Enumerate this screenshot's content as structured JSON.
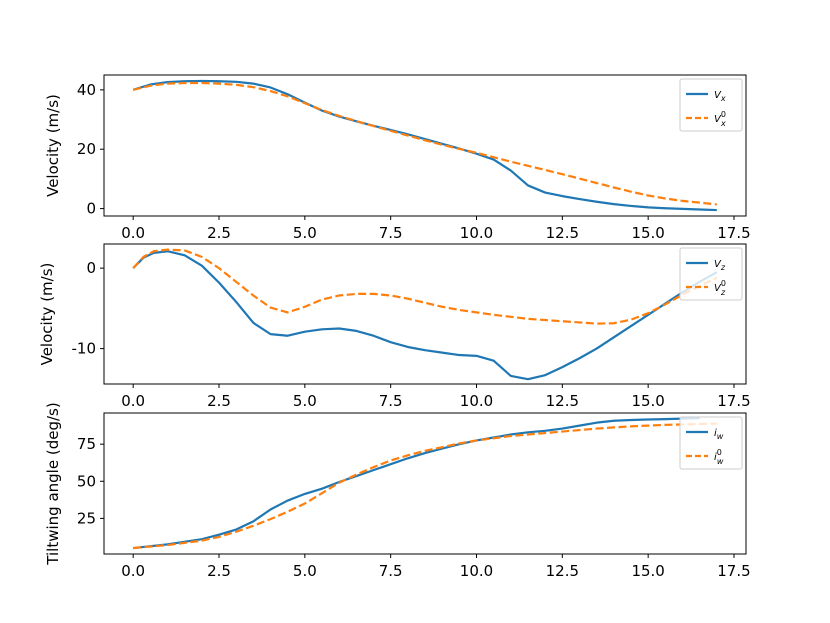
{
  "colors": {
    "series1": "#1f77b4",
    "series2": "#ff7f0e"
  },
  "chart_data": [
    {
      "type": "line",
      "ylabel": "Velocity (m/s)",
      "xlim": [
        -0.85,
        17.85
      ],
      "ylim": [
        -2.5,
        45
      ],
      "xticks": [
        0,
        2.5,
        5,
        7.5,
        10,
        12.5,
        15,
        17.5
      ],
      "xtick_labels": [
        "0.0",
        "2.5",
        "5.0",
        "7.5",
        "10.0",
        "12.5",
        "15.0",
        "17.5"
      ],
      "yticks": [
        0,
        20,
        40
      ],
      "ytick_labels": [
        "0",
        "20",
        "40"
      ],
      "legend": "top-right",
      "series": [
        {
          "name": "V",
          "sub": "x",
          "sup": "",
          "style": "solid",
          "x": [
            0,
            0.5,
            1,
            1.5,
            2,
            2.5,
            3,
            3.5,
            4,
            4.5,
            5,
            5.5,
            6,
            6.5,
            7,
            7.5,
            8,
            8.5,
            9,
            9.5,
            10,
            10.5,
            11,
            11.5,
            12,
            12.5,
            13,
            13.5,
            14,
            14.5,
            15,
            15.5,
            16,
            16.5,
            17
          ],
          "y": [
            40,
            41.8,
            42.6,
            42.9,
            43,
            42.9,
            42.7,
            42.1,
            40.8,
            38.5,
            35.7,
            33,
            31,
            29.4,
            27.9,
            26.5,
            25,
            23.4,
            21.8,
            20.2,
            18.5,
            16.5,
            12.8,
            7.8,
            5.4,
            4.2,
            3.2,
            2.3,
            1.5,
            0.9,
            0.4,
            0.1,
            -0.1,
            -0.3,
            -0.5
          ]
        },
        {
          "name": "V",
          "sub": "x",
          "sup": "0",
          "style": "dashed",
          "x": [
            0,
            0.5,
            1,
            1.5,
            2,
            2.5,
            3,
            3.5,
            4,
            4.5,
            5,
            5.5,
            6,
            6.5,
            7,
            7.5,
            8,
            8.5,
            9,
            9.5,
            10,
            10.5,
            11,
            11.5,
            12,
            12.5,
            13,
            13.5,
            14,
            14.5,
            15,
            15.5,
            16,
            16.5,
            17
          ],
          "y": [
            40,
            41.4,
            42.1,
            42.3,
            42.3,
            42.1,
            41.7,
            40.9,
            39.6,
            37.8,
            35.5,
            33.2,
            31.2,
            29.5,
            27.8,
            26.2,
            24.6,
            23,
            21.5,
            20.1,
            18.8,
            17.3,
            15.8,
            14.4,
            13,
            11.6,
            10.1,
            8.6,
            7.1,
            5.7,
            4.4,
            3.4,
            2.6,
            2,
            1.4
          ]
        }
      ]
    },
    {
      "type": "line",
      "ylabel": "Velocity (m/s)",
      "xlim": [
        -0.85,
        17.85
      ],
      "ylim": [
        -14.4,
        3.0
      ],
      "xticks": [
        0,
        2.5,
        5,
        7.5,
        10,
        12.5,
        15,
        17.5
      ],
      "xtick_labels": [
        "0.0",
        "2.5",
        "5.0",
        "7.5",
        "10.0",
        "12.5",
        "15.0",
        "17.5"
      ],
      "yticks": [
        0,
        -10
      ],
      "ytick_labels": [
        "0",
        "-10"
      ],
      "legend": "top-right",
      "series": [
        {
          "name": "V",
          "sub": "z",
          "sup": "",
          "style": "solid",
          "x": [
            0,
            0.3,
            0.6,
            1,
            1.5,
            2,
            2.5,
            3,
            3.5,
            4,
            4.5,
            5,
            5.5,
            6,
            6.5,
            7,
            7.5,
            8,
            8.5,
            9,
            9.5,
            10,
            10.5,
            11,
            11.5,
            12,
            12.5,
            13,
            13.5,
            14,
            14.5,
            15,
            15.5,
            16,
            16.5,
            17
          ],
          "y": [
            0,
            1.3,
            1.9,
            2.1,
            1.6,
            0.3,
            -1.8,
            -4.2,
            -6.8,
            -8.2,
            -8.4,
            -7.9,
            -7.6,
            -7.5,
            -7.8,
            -8.4,
            -9.2,
            -9.8,
            -10.2,
            -10.5,
            -10.8,
            -10.9,
            -11.5,
            -13.4,
            -13.8,
            -13.3,
            -12.3,
            -11.2,
            -10,
            -8.6,
            -7.2,
            -5.8,
            -4.4,
            -3,
            -1.7,
            -0.5
          ]
        },
        {
          "name": "V",
          "sub": "z",
          "sup": "0",
          "style": "dashed",
          "x": [
            0,
            0.3,
            0.6,
            1,
            1.5,
            2,
            2.5,
            3,
            3.5,
            4,
            4.5,
            5,
            5.5,
            6,
            6.5,
            7,
            7.5,
            8,
            8.5,
            9,
            9.5,
            10,
            10.5,
            11,
            11.5,
            12,
            12.5,
            13,
            13.5,
            14,
            14.5,
            15,
            15.5,
            16,
            16.5,
            17
          ],
          "y": [
            0,
            1.4,
            2.1,
            2.3,
            2.2,
            1.4,
            0,
            -1.7,
            -3.4,
            -4.9,
            -5.5,
            -4.8,
            -3.9,
            -3.4,
            -3.2,
            -3.2,
            -3.4,
            -3.8,
            -4.3,
            -4.8,
            -5.2,
            -5.5,
            -5.8,
            -6.05,
            -6.3,
            -6.45,
            -6.6,
            -6.75,
            -6.9,
            -6.85,
            -6.4,
            -5.6,
            -4.5,
            -3.3,
            -2.2,
            -1.2
          ]
        }
      ]
    },
    {
      "type": "line",
      "ylabel": "Tiltwing angle (deg/s)",
      "xlim": [
        -0.85,
        17.85
      ],
      "ylim": [
        1,
        96
      ],
      "xticks": [
        0,
        2.5,
        5,
        7.5,
        10,
        12.5,
        15,
        17.5
      ],
      "xtick_labels": [
        "0.0",
        "2.5",
        "5.0",
        "7.5",
        "10.0",
        "12.5",
        "15.0",
        "17.5"
      ],
      "yticks": [
        25,
        50,
        75
      ],
      "ytick_labels": [
        "25",
        "50",
        "75"
      ],
      "legend": "top-right",
      "series": [
        {
          "name": "i",
          "sub": "w",
          "sup": "",
          "style": "solid",
          "x": [
            0,
            1,
            2,
            2.5,
            3,
            3.5,
            4,
            4.5,
            5,
            5.5,
            6,
            6.5,
            7,
            7.5,
            8,
            8.5,
            9,
            9.5,
            10,
            10.5,
            11,
            11.5,
            12,
            12.5,
            13,
            13.5,
            14,
            14.5,
            15,
            15.5,
            16,
            16.5
          ],
          "y": [
            5,
            7.5,
            11,
            14,
            17.5,
            23,
            31,
            37,
            41.5,
            45,
            49.5,
            53.5,
            57.5,
            61.5,
            65.5,
            69,
            72,
            75,
            77.5,
            79.5,
            81.5,
            83,
            84,
            85.5,
            87.5,
            89.5,
            90.8,
            91.3,
            91.6,
            91.9,
            92.2,
            92.5
          ]
        },
        {
          "name": "i",
          "sub": "w",
          "sup": "0",
          "style": "dashed",
          "x": [
            0,
            1,
            2,
            2.5,
            3,
            3.5,
            4,
            4.5,
            5,
            5.5,
            6,
            6.5,
            7,
            7.5,
            8,
            8.5,
            9,
            9.5,
            10,
            10.5,
            11,
            11.5,
            12,
            12.5,
            13,
            13.5,
            14,
            14.5,
            15,
            15.5,
            16,
            16.5,
            17
          ],
          "y": [
            5,
            7,
            10,
            12.5,
            16,
            20,
            24.5,
            29.5,
            35,
            42,
            49,
            54.5,
            59.5,
            64,
            67.5,
            70.5,
            73,
            75.5,
            77.5,
            79,
            80.5,
            81.5,
            82.5,
            83.5,
            84.5,
            85.5,
            86.3,
            87,
            87.5,
            88,
            88.3,
            88.6,
            88.9
          ]
        }
      ]
    }
  ]
}
